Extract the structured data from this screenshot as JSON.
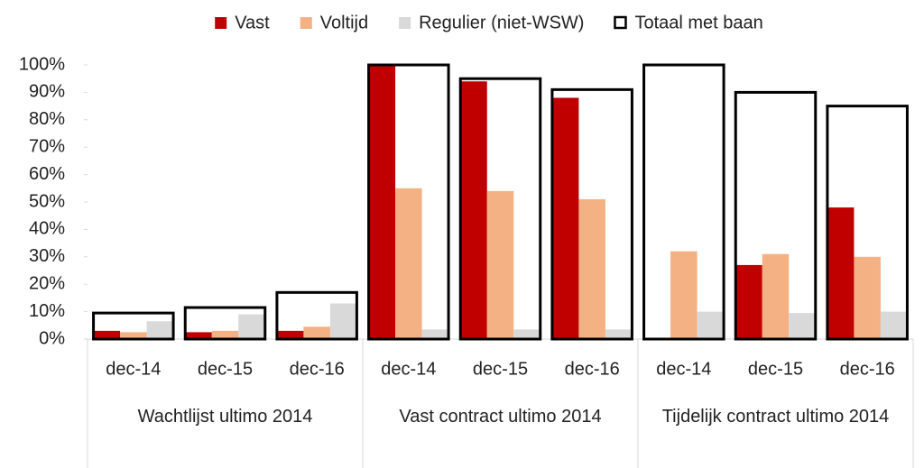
{
  "chart_data": {
    "type": "bar",
    "groups": [
      {
        "name": "Wachtlijst ultimo 2014",
        "categories": [
          "dec-14",
          "dec-15",
          "dec-16"
        ]
      },
      {
        "name": "Vast contract ultimo 2014",
        "categories": [
          "dec-14",
          "dec-15",
          "dec-16"
        ]
      },
      {
        "name": "Tijdelijk contract ultimo 2014",
        "categories": [
          "dec-14",
          "dec-15",
          "dec-16"
        ]
      }
    ],
    "series": [
      {
        "name": "Vast",
        "color": "#c00000",
        "values": [
          3,
          2.5,
          3,
          100,
          94,
          88,
          0,
          27,
          48
        ]
      },
      {
        "name": "Voltijd",
        "color": "#f4b183",
        "values": [
          2.5,
          3,
          4.5,
          55,
          54,
          51,
          32,
          31,
          30
        ]
      },
      {
        "name": "Regulier (niet-WSW)",
        "color": "#d9d9d9",
        "values": [
          6.5,
          9,
          13,
          3.5,
          3.5,
          3.5,
          10,
          9.5,
          10
        ]
      },
      {
        "name": "Totaal met baan",
        "color": "#000000",
        "style": "outline",
        "values": [
          9.5,
          11.5,
          17,
          100,
          95,
          91,
          100,
          90,
          85
        ]
      }
    ],
    "ylim": [
      0,
      100
    ],
    "yticks": [
      {
        "value": 0,
        "label": "0%"
      },
      {
        "value": 10,
        "label": "10%"
      },
      {
        "value": 20,
        "label": "20%"
      },
      {
        "value": 30,
        "label": "30%"
      },
      {
        "value": 40,
        "label": "40%"
      },
      {
        "value": 50,
        "label": "50%"
      },
      {
        "value": 60,
        "label": "60%"
      },
      {
        "value": 70,
        "label": "70%"
      },
      {
        "value": 80,
        "label": "80%"
      },
      {
        "value": 90,
        "label": "90%"
      },
      {
        "value": 100,
        "label": "100%"
      }
    ],
    "legend": "top",
    "grid": false
  }
}
